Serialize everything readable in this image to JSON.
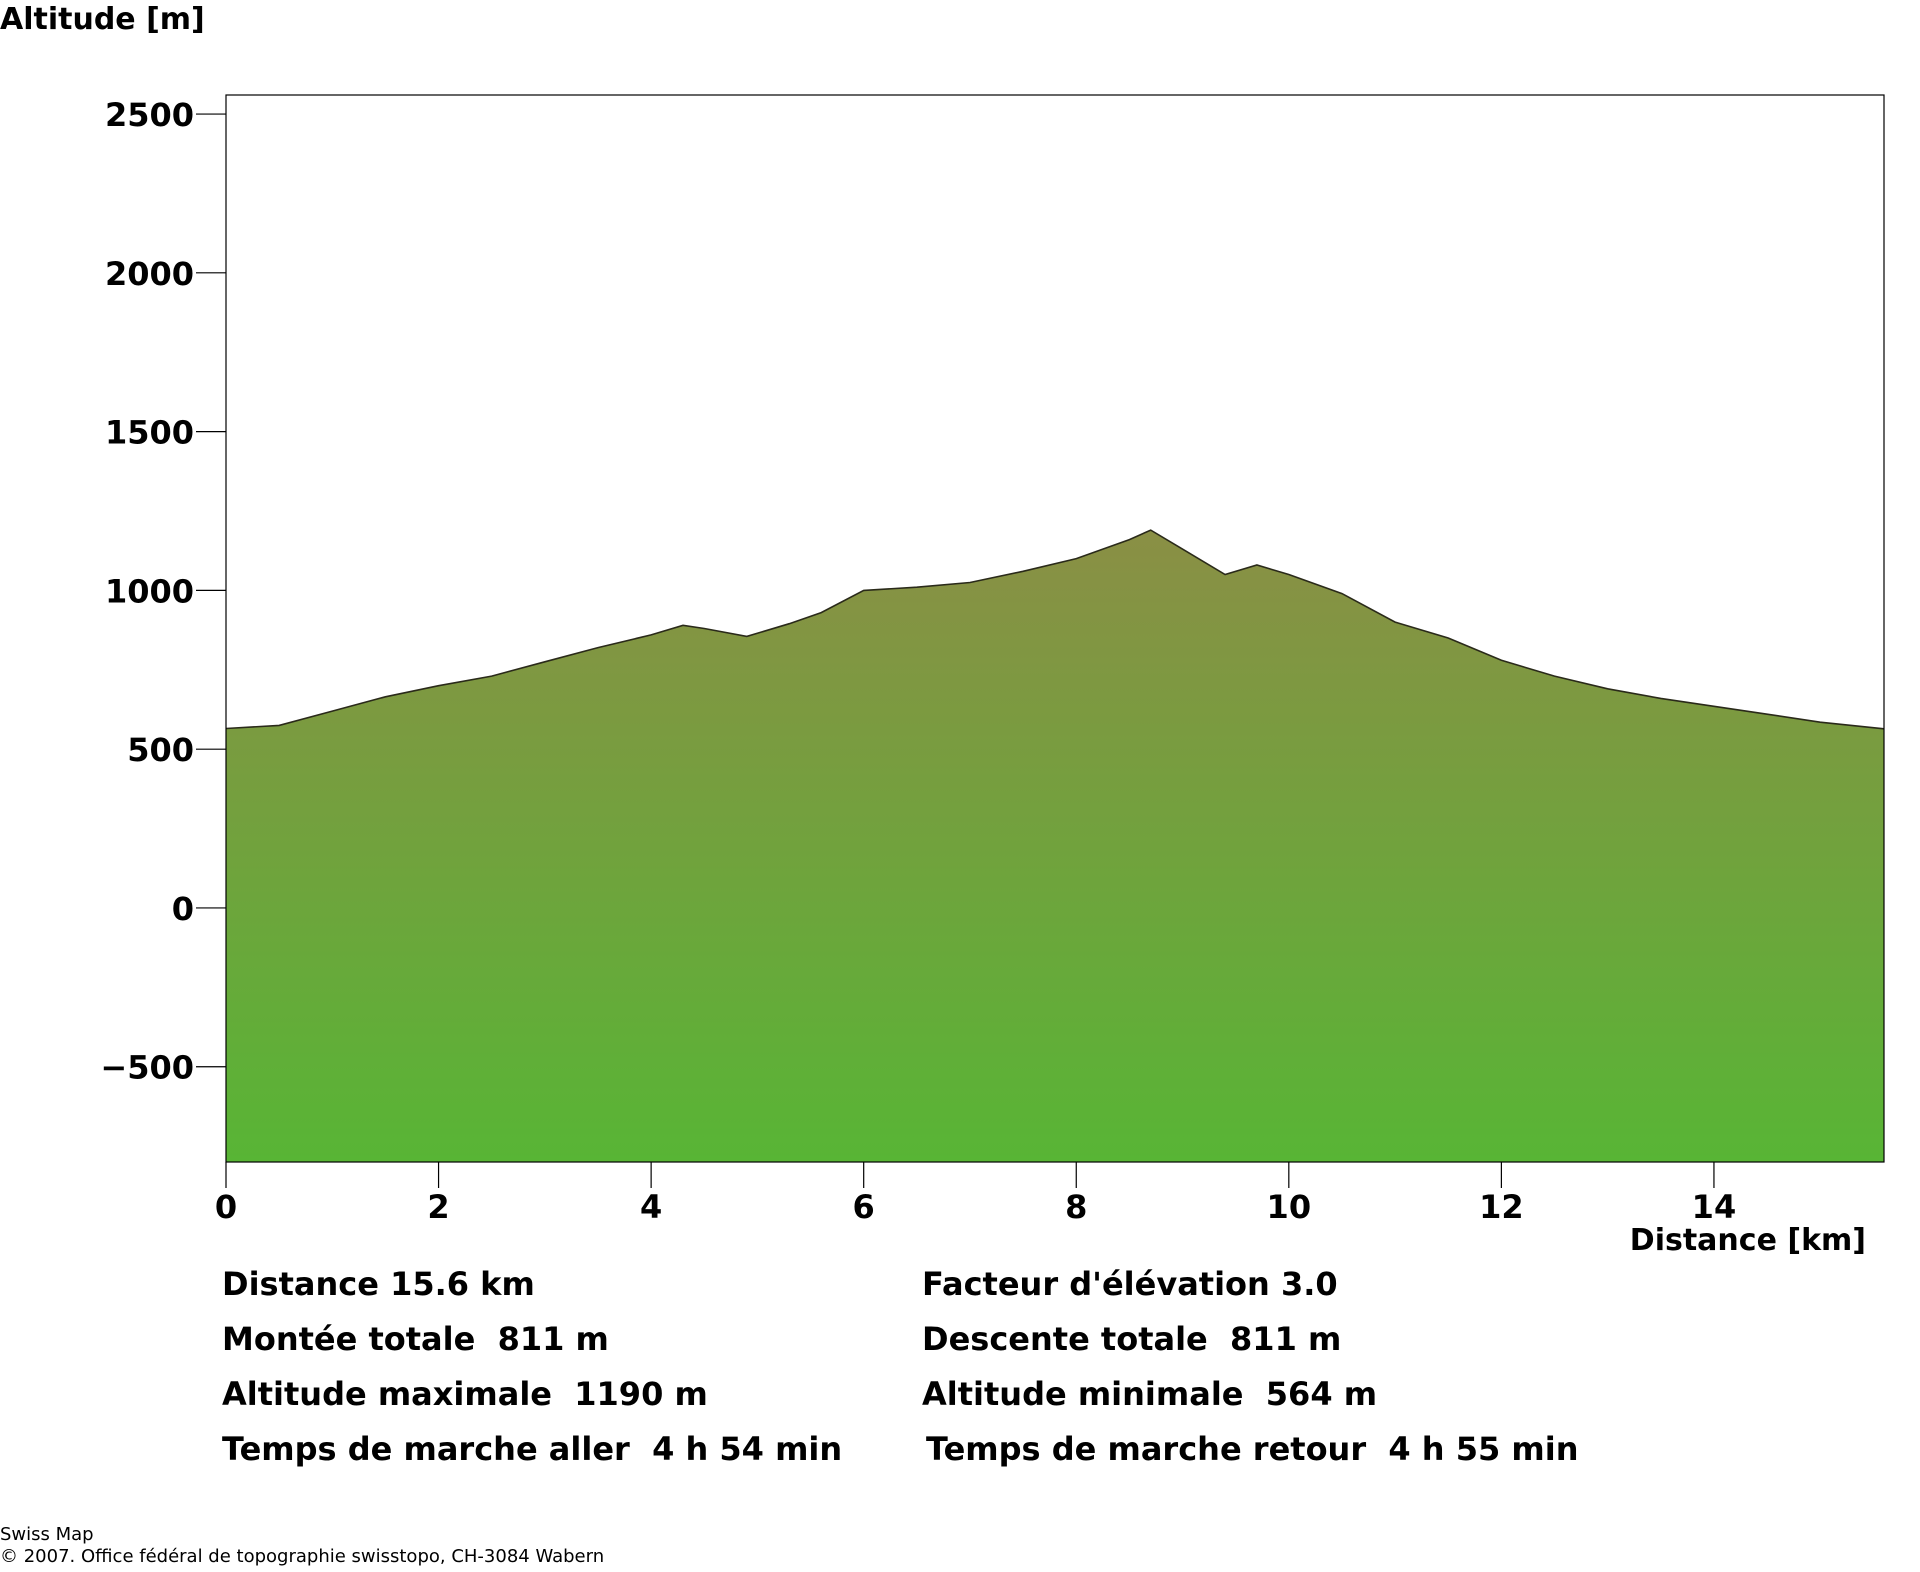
{
  "chart_data": {
    "type": "area",
    "ylabel": "Altitude [m]",
    "xlabel": "Distance [km]",
    "xlim": [
      0,
      15.6
    ],
    "ylim": [
      -800,
      2560
    ],
    "x_ticks": [
      0,
      2,
      4,
      6,
      8,
      10,
      12,
      14
    ],
    "y_ticks": [
      -500,
      0,
      500,
      1000,
      1500,
      2000,
      2500
    ],
    "grid": false,
    "fill_color_top": "#8a8f45",
    "fill_color_bottom": "#58b535",
    "series": [
      {
        "x": [
          0,
          0.5,
          1,
          1.5,
          2,
          2.5,
          3,
          3.5,
          4,
          4.3,
          4.5,
          4.9,
          5.3,
          5.6,
          6,
          6.5,
          7,
          7.5,
          8,
          8.5,
          8.7,
          9,
          9.4,
          9.7,
          10,
          10.5,
          11,
          11.5,
          12,
          12.5,
          13,
          13.5,
          14,
          14.5,
          15,
          15.6
        ],
        "y": [
          565,
          575,
          620,
          665,
          700,
          730,
          775,
          820,
          860,
          890,
          880,
          855,
          895,
          930,
          1000,
          1010,
          1025,
          1060,
          1100,
          1160,
          1190,
          1130,
          1050,
          1080,
          1050,
          990,
          900,
          850,
          780,
          730,
          690,
          660,
          635,
          610,
          585,
          564
        ]
      }
    ]
  },
  "stats": {
    "distance": "Distance 15.6 km",
    "elevation_factor": "Facteur d'élévation 3.0",
    "total_ascent": "Montée totale  811 m",
    "total_descent": "Descente totale  811 m",
    "max_altitude": "Altitude maximale  1190 m",
    "min_altitude": "Altitude minimale  564 m",
    "time_outbound": "Temps de marche aller  4 h 54 min",
    "time_return": "Temps de marche retour  4 h 55 min"
  },
  "footer": {
    "brand": "Swiss Map",
    "copyright": "© 2007. Office fédéral de topographie swisstopo, CH-3084 Wabern"
  }
}
